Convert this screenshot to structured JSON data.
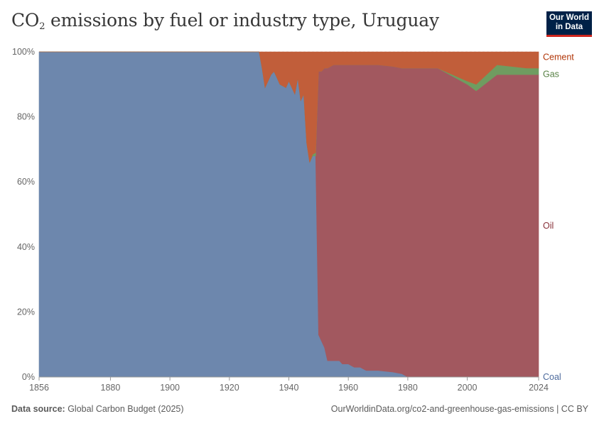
{
  "header": {
    "title_main": "CO",
    "title_sub": "2",
    "title_rest": " emissions by fuel or industry type, Uruguay"
  },
  "logo": {
    "line1": "Our World",
    "line2": "in Data"
  },
  "footer": {
    "source_label": "Data source:",
    "source_value": " Global Carbon Budget (2025)",
    "url": "OurWorldinData.org/co2-and-greenhouse-gas-emissions | CC BY"
  },
  "chart_data": {
    "type": "area",
    "stacked": true,
    "percent": true,
    "title": "CO₂ emissions by fuel or industry type, Uruguay",
    "xlim": [
      1856,
      2024
    ],
    "ylim": [
      0,
      100
    ],
    "x_ticks": [
      1856,
      1880,
      1900,
      1920,
      1940,
      1960,
      1980,
      2000,
      2024
    ],
    "y_ticks": [
      0,
      20,
      40,
      60,
      80,
      100
    ],
    "y_tick_labels": [
      "0%",
      "20%",
      "40%",
      "60%",
      "80%",
      "100%"
    ],
    "grid": "horizontal dashed",
    "legend": "inline-right",
    "colors": {
      "Coal": "#6d87ad",
      "Oil": "#a2585f",
      "Gas": "#6f9c60",
      "Cement": "#c15e3a"
    },
    "x": [
      1856,
      1930,
      1931,
      1932,
      1934,
      1935,
      1936,
      1937,
      1939,
      1940,
      1942,
      1943,
      1944,
      1945,
      1946,
      1947,
      1948,
      1949,
      1950,
      1951,
      1952,
      1953,
      1955,
      1957,
      1958,
      1960,
      1962,
      1964,
      1966,
      1968,
      1970,
      1975,
      1978,
      1979,
      1980,
      1990,
      2000,
      2003,
      2010,
      2020,
      2024
    ],
    "series": [
      {
        "name": "Coal",
        "values": [
          100,
          100,
          95,
          89,
          93,
          94,
          92,
          90,
          89,
          91,
          87,
          92,
          85,
          87,
          72,
          66,
          68,
          68,
          13,
          11,
          9,
          5,
          5,
          5,
          4,
          4,
          3,
          3,
          2,
          2,
          2,
          1.5,
          1,
          0.5,
          0,
          0,
          0,
          0,
          0,
          0,
          0
        ]
      },
      {
        "name": "Oil",
        "values": [
          0,
          0,
          0,
          0,
          0,
          0,
          0,
          0,
          0,
          0,
          0,
          0,
          0,
          0,
          0,
          0,
          0,
          0,
          81,
          83,
          86,
          90,
          91,
          91,
          92,
          92,
          93,
          93,
          94,
          94,
          94,
          94,
          94,
          94.5,
          95,
          95,
          90,
          88,
          93,
          93,
          93
        ]
      },
      {
        "name": "Gas",
        "values": [
          0,
          0,
          0,
          0,
          0,
          0,
          0,
          0,
          0,
          0,
          0,
          0,
          0,
          0,
          0,
          0,
          0.5,
          1,
          0,
          0,
          0,
          0,
          0,
          0,
          0,
          0,
          0,
          0,
          0,
          0,
          0,
          0,
          0,
          0,
          0,
          0,
          1,
          2,
          3,
          2,
          2
        ]
      },
      {
        "name": "Cement",
        "values": [
          0,
          0,
          5,
          11,
          7,
          6,
          8,
          10,
          11,
          9,
          13,
          8,
          15,
          13,
          28,
          34,
          31.5,
          31,
          6,
          6,
          5,
          5,
          4,
          4,
          4,
          4,
          4,
          4,
          4,
          4,
          4,
          4.5,
          5,
          5,
          5,
          5,
          9,
          10,
          4,
          5,
          5
        ]
      }
    ]
  }
}
